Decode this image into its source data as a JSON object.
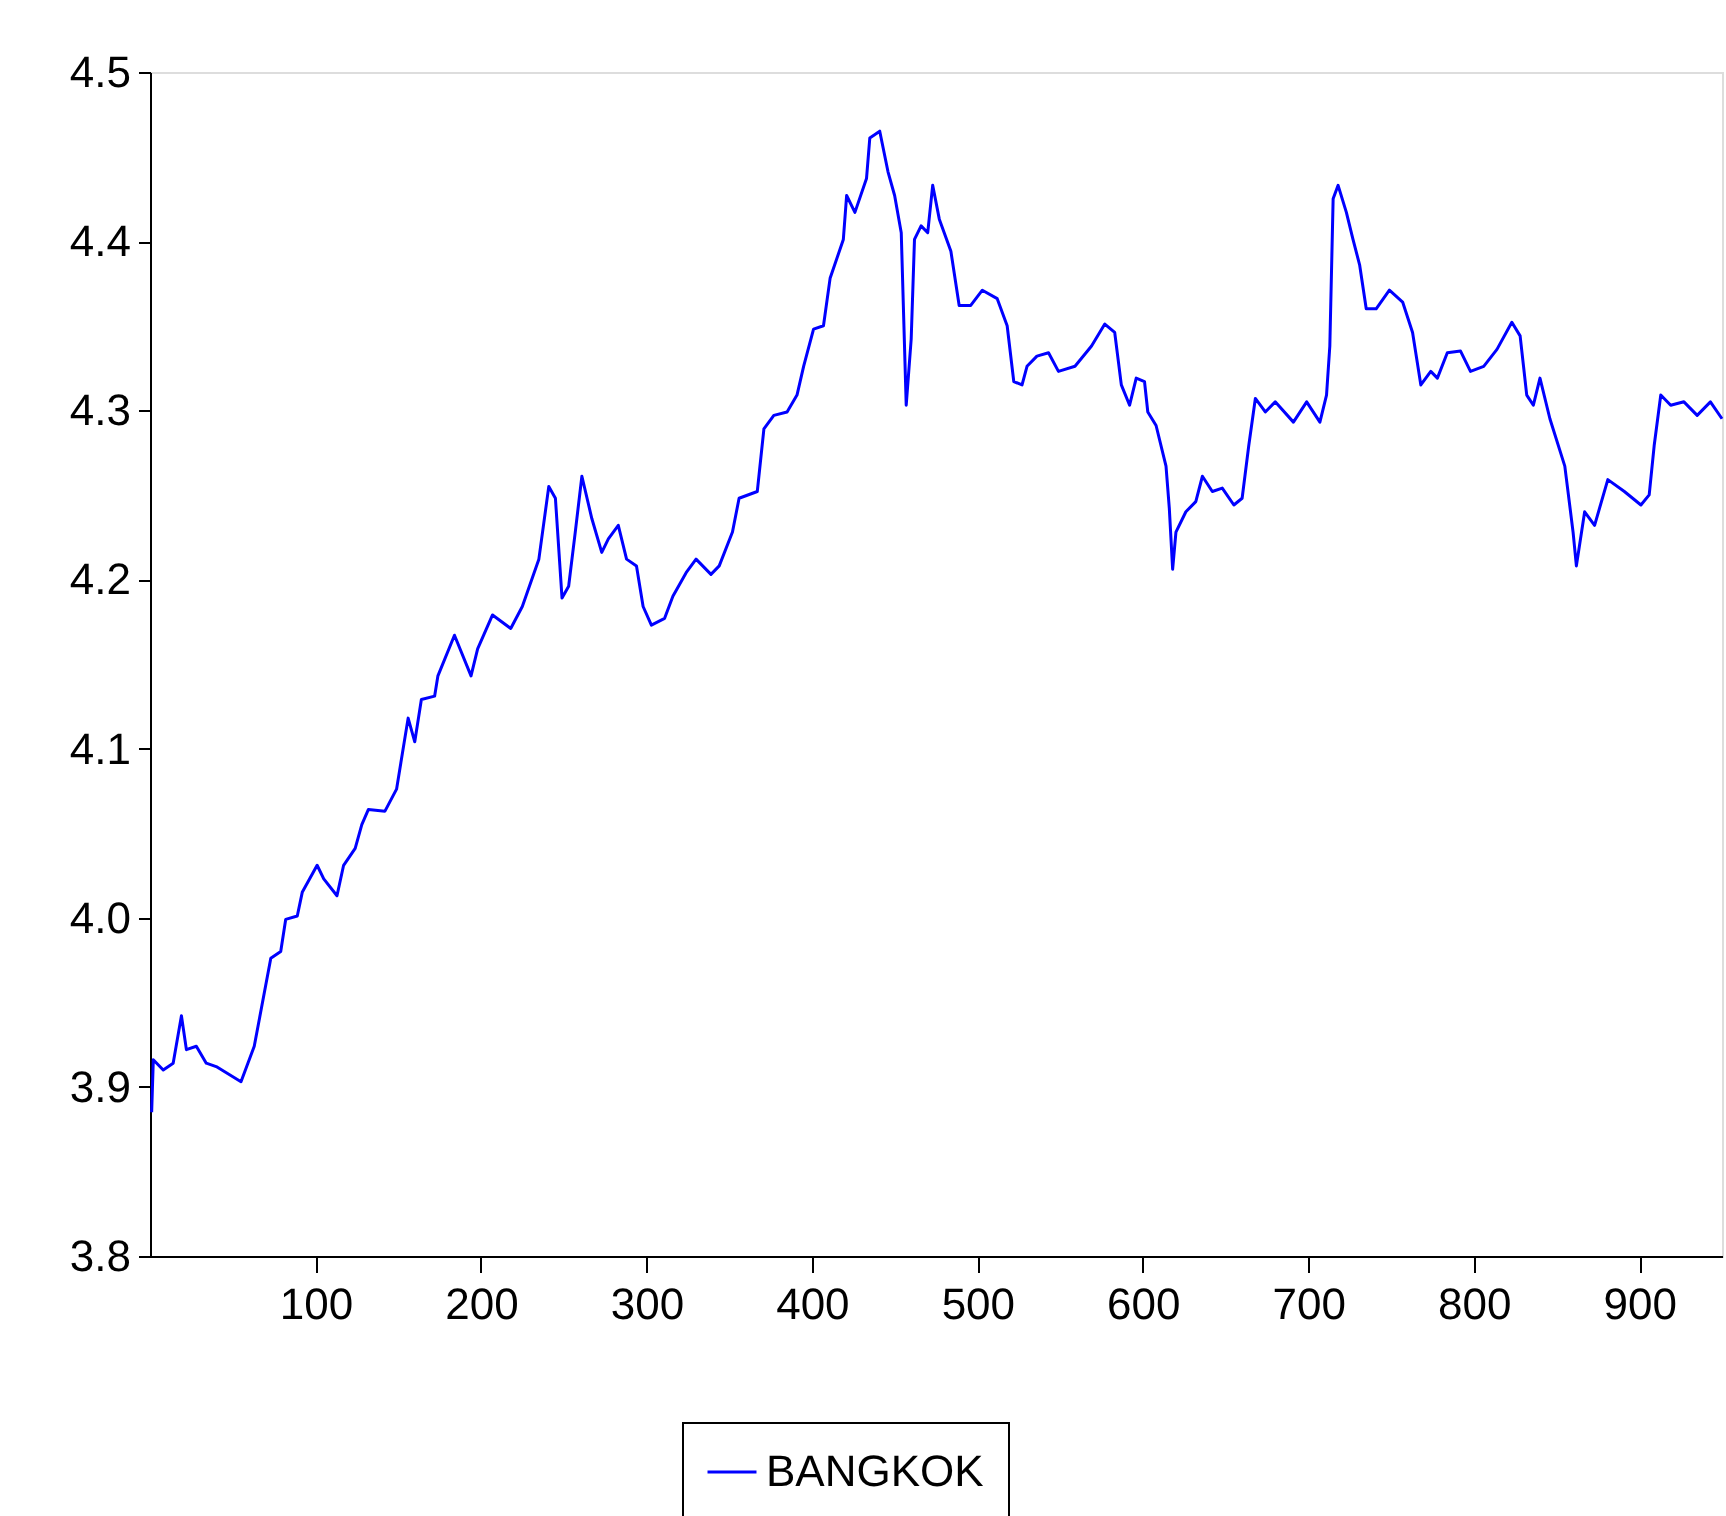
{
  "chart_data": {
    "type": "line",
    "xlim": [
      0,
      950
    ],
    "xticks": [
      100,
      200,
      300,
      400,
      500,
      600,
      700,
      800,
      900
    ],
    "ylim": [
      3.8,
      4.5
    ],
    "yticks": [
      3.8,
      3.9,
      {
        "value": 4,
        "label": "4.0"
      },
      4.1,
      4.2,
      4.3,
      4.4,
      4.5
    ],
    "grid": false,
    "legend": "bottom",
    "marker": "none",
    "line_style": "solid",
    "x": [
      1,
      2,
      8,
      14,
      19,
      22,
      28,
      34,
      40,
      55,
      63,
      73,
      79,
      82,
      89,
      92,
      101,
      105,
      113,
      117,
      124,
      128,
      132,
      142,
      149,
      156,
      160,
      164,
      172,
      174,
      184,
      194,
      198,
      207,
      218,
      225,
      235,
      241,
      245,
      249,
      253,
      257,
      261,
      267,
      273,
      277,
      283,
      288,
      294,
      298,
      303,
      311,
      316,
      324,
      330,
      339,
      344,
      352,
      356,
      367,
      371,
      377,
      385,
      391,
      395,
      401,
      407,
      411,
      419,
      421,
      426,
      433,
      435,
      441,
      446,
      450,
      454,
      457,
      460,
      462,
      466,
      470,
      473,
      477,
      484,
      489,
      496,
      503,
      512,
      518,
      522,
      527,
      530,
      536,
      543,
      549,
      559,
      569,
      577,
      583,
      587,
      592,
      596,
      601,
      603,
      608,
      614,
      616,
      618,
      620,
      626,
      632,
      636,
      642,
      648,
      655,
      660,
      664,
      668,
      674,
      680,
      691,
      699,
      707,
      711,
      713,
      715,
      718,
      723,
      727,
      731,
      735,
      741,
      749,
      757,
      763,
      768,
      774,
      778,
      784,
      792,
      798,
      806,
      814,
      823,
      828,
      832,
      836,
      840,
      846,
      855,
      860,
      862,
      867,
      873,
      881,
      891,
      901,
      906,
      909,
      913,
      919,
      927,
      935,
      943,
      950
    ],
    "series": [
      {
        "name": "BANGKOK",
        "color": "#0000ff",
        "values": [
          3.885,
          3.916,
          3.91,
          3.914,
          3.942,
          3.922,
          3.924,
          3.914,
          3.912,
          3.903,
          3.924,
          3.976,
          3.98,
          3.999,
          4.001,
          4.015,
          4.031,
          4.023,
          4.013,
          4.031,
          4.041,
          4.055,
          4.064,
          4.063,
          4.076,
          4.118,
          4.104,
          4.129,
          4.131,
          4.143,
          4.167,
          4.143,
          4.159,
          4.179,
          4.171,
          4.184,
          4.212,
          4.255,
          4.248,
          4.189,
          4.196,
          4.228,
          4.261,
          4.236,
          4.216,
          4.224,
          4.232,
          4.212,
          4.208,
          4.184,
          4.173,
          4.177,
          4.19,
          4.204,
          4.212,
          4.203,
          4.208,
          4.228,
          4.248,
          4.252,
          4.289,
          4.297,
          4.299,
          4.309,
          4.326,
          4.348,
          4.35,
          4.378,
          4.401,
          4.427,
          4.417,
          4.437,
          4.461,
          4.465,
          4.441,
          4.427,
          4.405,
          4.303,
          4.342,
          4.401,
          4.409,
          4.405,
          4.433,
          4.413,
          4.394,
          4.362,
          4.362,
          4.371,
          4.366,
          4.35,
          4.317,
          4.315,
          4.326,
          4.332,
          4.334,
          4.323,
          4.326,
          4.338,
          4.351,
          4.346,
          4.315,
          4.303,
          4.319,
          4.317,
          4.299,
          4.291,
          4.267,
          4.242,
          4.206,
          4.228,
          4.24,
          4.246,
          4.261,
          4.252,
          4.254,
          4.244,
          4.248,
          4.279,
          4.307,
          4.299,
          4.305,
          4.293,
          4.305,
          4.293,
          4.309,
          4.338,
          4.425,
          4.433,
          4.417,
          4.401,
          4.386,
          4.36,
          4.36,
          4.371,
          4.364,
          4.346,
          4.315,
          4.323,
          4.319,
          4.334,
          4.335,
          4.323,
          4.326,
          4.336,
          4.352,
          4.344,
          4.309,
          4.303,
          4.319,
          4.295,
          4.267,
          4.228,
          4.208,
          4.24,
          4.232,
          4.259,
          4.252,
          4.244,
          4.25,
          4.279,
          4.309,
          4.303,
          4.305,
          4.297,
          4.305,
          4.295
        ]
      }
    ]
  }
}
